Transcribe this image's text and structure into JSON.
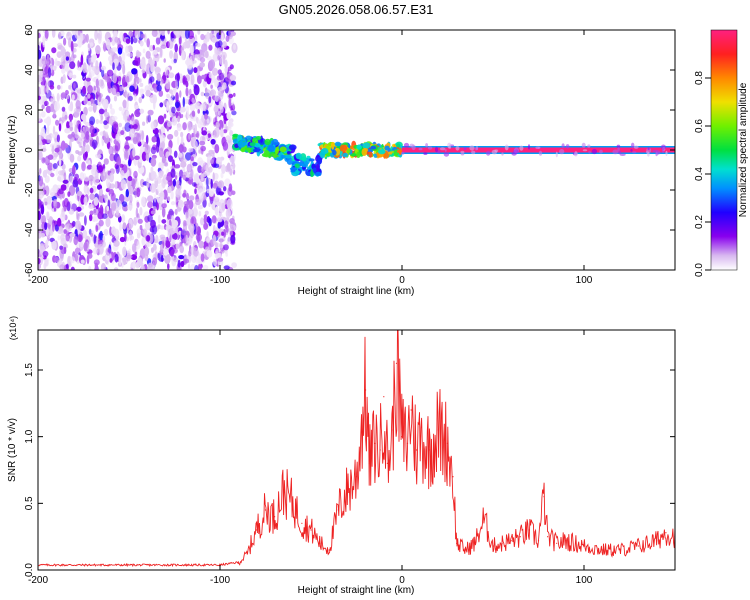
{
  "title": "GN05.2026.058.06.57.E31",
  "chart_data": [
    {
      "type": "heatmap",
      "xlabel": "Height of straight line (km)",
      "ylabel": "Frequency (Hz)",
      "xlim": [
        -200,
        150
      ],
      "ylim": [
        -60,
        60
      ],
      "x_ticks": [
        -200,
        -100,
        0,
        100
      ],
      "y_ticks": [
        -60,
        -40,
        -20,
        0,
        20,
        40,
        60
      ],
      "colorbar": {
        "label": "Normalized spectral amplitude",
        "range": [
          0,
          1
        ],
        "ticks": [
          0.0,
          0.2,
          0.4,
          0.6,
          0.8
        ]
      },
      "regions": [
        {
          "x": [
            -200,
            -92
          ],
          "freq": [
            -60,
            60
          ],
          "amplitude": [
            0.02,
            0.2
          ],
          "pattern": "scattered noise"
        },
        {
          "x": [
            -92,
            -60
          ],
          "freq": [
            -5,
            8
          ],
          "amplitude": [
            0.2,
            0.6
          ],
          "pattern": "descending band"
        },
        {
          "x": [
            -60,
            -45
          ],
          "freq": [
            -15,
            0
          ],
          "amplitude": [
            0.2,
            0.5
          ],
          "pattern": "band"
        },
        {
          "x": [
            -45,
            0
          ],
          "freq": [
            -5,
            5
          ],
          "amplitude": [
            0.3,
            0.9
          ],
          "pattern": "band"
        },
        {
          "x": [
            0,
            150
          ],
          "freq": [
            -1,
            1
          ],
          "amplitude": [
            0.8,
            1.0
          ],
          "pattern": "narrow line"
        }
      ]
    },
    {
      "type": "line",
      "xlabel": "Height of straight line (km)",
      "ylabel": "SNR (10 * v/v)",
      "y_multiplier": "(x10⁴)",
      "xlim": [
        -200,
        150
      ],
      "ylim": [
        0,
        1.8
      ],
      "x_ticks": [
        -200,
        -100,
        0,
        100
      ],
      "y_ticks": [
        0.0,
        0.5,
        1.0,
        1.5
      ],
      "series": [
        {
          "color": "#ee2222",
          "x": [
            -200,
            -100,
            -90,
            -85,
            -80,
            -75,
            -70,
            -65,
            -60,
            -55,
            -50,
            -45,
            -40,
            -35,
            -30,
            -25,
            -20,
            -18,
            -15,
            -12,
            -10,
            -8,
            -5,
            -3,
            0,
            3,
            5,
            8,
            10,
            15,
            20,
            25,
            28,
            30,
            35,
            40,
            45,
            50,
            55,
            60,
            65,
            70,
            75,
            78,
            80,
            85,
            90,
            100,
            110,
            120,
            130,
            140,
            145,
            150
          ],
          "y": [
            0.03,
            0.03,
            0.05,
            0.12,
            0.3,
            0.45,
            0.4,
            0.6,
            0.5,
            0.35,
            0.3,
            0.2,
            0.15,
            0.45,
            0.6,
            0.7,
            1.35,
            0.8,
            0.95,
            0.9,
            1.3,
            0.8,
            1.05,
            1.55,
            1.0,
            0.95,
            1.2,
            0.9,
            1.0,
            0.9,
            1.05,
            0.95,
            0.7,
            0.2,
            0.15,
            0.2,
            0.38,
            0.18,
            0.2,
            0.22,
            0.25,
            0.3,
            0.22,
            0.55,
            0.25,
            0.2,
            0.22,
            0.18,
            0.15,
            0.15,
            0.18,
            0.22,
            0.28,
            0.25
          ]
        }
      ]
    }
  ]
}
